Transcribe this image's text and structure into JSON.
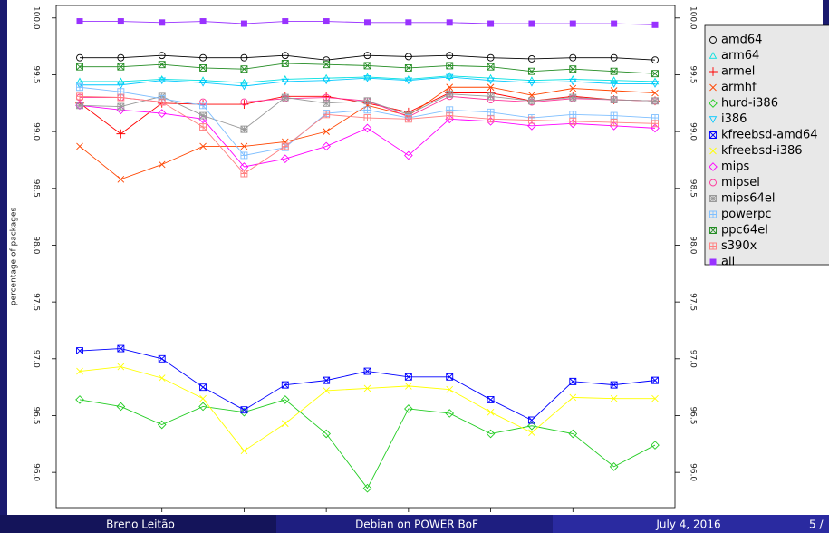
{
  "chart_data": {
    "type": "line",
    "y_label": "percentage of packages",
    "categories": [
      null,
      null,
      null,
      null,
      null,
      null,
      null,
      null,
      null,
      null,
      null,
      null,
      null,
      null,
      null
    ],
    "ylim": [
      95.69,
      100.11
    ],
    "yticks": [
      {
        "value": 96,
        "label": "96.0"
      },
      96.5,
      {
        "value": 97,
        "label": "97.0"
      },
      97.5,
      {
        "value": 98,
        "label": "98.0"
      },
      98.5,
      {
        "value": 99,
        "label": "99.0"
      },
      99.5,
      {
        "value": 100,
        "label": "100.0"
      }
    ],
    "legend": "right",
    "series": [
      {
        "name": "amd64",
        "color": "#000000",
        "marker": "circle",
        "values": [
          99.65,
          99.65,
          99.67,
          99.65,
          99.65,
          99.67,
          99.63,
          99.67,
          99.66,
          99.67,
          99.65,
          99.64,
          99.65,
          99.65,
          99.63
        ]
      },
      {
        "name": "arm64",
        "color": "#00e0e0",
        "marker": "triangle",
        "values": [
          99.44,
          99.44,
          99.46,
          99.45,
          99.43,
          99.46,
          99.47,
          99.48,
          99.46,
          99.49,
          99.47,
          99.45,
          99.46,
          99.45,
          99.44
        ]
      },
      {
        "name": "armel",
        "color": "#ff0000",
        "marker": "plus",
        "values": [
          99.25,
          98.98,
          99.25,
          99.24,
          99.24,
          99.31,
          99.31,
          99.25,
          99.17,
          99.34,
          99.34,
          99.27,
          99.31,
          99.28,
          99.27
        ]
      },
      {
        "name": "armhf",
        "color": "#ff4500",
        "marker": "x",
        "values": [
          98.87,
          98.58,
          98.71,
          98.87,
          98.87,
          98.91,
          99.0,
          99.23,
          99.14,
          99.39,
          99.39,
          99.32,
          99.38,
          99.36,
          99.34
        ]
      },
      {
        "name": "hurd-i386",
        "color": "#22cc22",
        "marker": "diamond",
        "values": [
          96.64,
          96.58,
          96.42,
          96.58,
          96.53,
          96.64,
          96.34,
          95.86,
          96.56,
          96.52,
          96.34,
          96.41,
          96.34,
          96.05,
          96.24
        ]
      },
      {
        "name": "i386",
        "color": "#00c8ff",
        "marker": "tri-down",
        "values": [
          99.41,
          99.41,
          99.45,
          99.43,
          99.4,
          99.44,
          99.45,
          99.47,
          99.45,
          99.48,
          99.45,
          99.43,
          99.44,
          99.42,
          99.42
        ]
      },
      {
        "name": "kfreebsd-amd64",
        "color": "#0000ff",
        "marker": "square-x",
        "values": [
          97.07,
          97.09,
          97.0,
          96.75,
          96.55,
          96.77,
          96.81,
          96.89,
          96.84,
          96.84,
          96.64,
          96.46,
          96.8,
          96.77,
          96.81
        ]
      },
      {
        "name": "kfreebsd-i386",
        "color": "#ffff00",
        "marker": "x",
        "values": [
          96.89,
          96.93,
          96.83,
          96.65,
          96.19,
          96.43,
          96.72,
          96.74,
          96.76,
          96.73,
          96.53,
          96.35,
          96.66,
          96.65,
          96.65
        ]
      },
      {
        "name": "mips",
        "color": "#ff00ff",
        "marker": "diamond",
        "values": [
          99.23,
          99.19,
          99.16,
          99.11,
          98.69,
          98.76,
          98.87,
          99.03,
          98.79,
          99.11,
          99.09,
          99.05,
          99.07,
          99.05,
          99.03
        ]
      },
      {
        "name": "mipsel",
        "color": "#ff3399",
        "marker": "circle",
        "values": [
          99.3,
          99.3,
          99.26,
          99.26,
          99.26,
          99.29,
          99.3,
          99.27,
          99.13,
          99.31,
          99.28,
          99.26,
          99.29,
          99.28,
          99.27
        ]
      },
      {
        "name": "mips64el",
        "color": "#999999",
        "marker": "star",
        "values": [
          99.23,
          99.22,
          99.31,
          99.14,
          99.02,
          99.3,
          99.25,
          99.27,
          99.15,
          99.33,
          99.31,
          99.27,
          99.3,
          99.28,
          99.27
        ]
      },
      {
        "name": "powerpc",
        "color": "#7fbfff",
        "marker": "square",
        "values": [
          99.39,
          99.35,
          99.29,
          99.23,
          98.79,
          98.86,
          99.16,
          99.19,
          99.12,
          99.19,
          99.17,
          99.12,
          99.15,
          99.14,
          99.12
        ]
      },
      {
        "name": "ppc64el",
        "color": "#228b22",
        "marker": "square-x",
        "values": [
          99.57,
          99.57,
          99.59,
          99.56,
          99.55,
          99.6,
          99.59,
          99.58,
          99.56,
          99.58,
          99.57,
          99.53,
          99.55,
          99.53,
          99.51
        ]
      },
      {
        "name": "s390x",
        "color": "#ff7f7f",
        "marker": "square",
        "values": [
          99.31,
          99.3,
          99.26,
          99.04,
          98.63,
          98.87,
          99.15,
          99.12,
          99.11,
          99.14,
          99.11,
          99.1,
          99.09,
          99.08,
          99.07
        ]
      },
      {
        "name": "all",
        "color": "#9932ff",
        "marker": "filled-square",
        "values": [
          99.97,
          99.97,
          99.96,
          99.97,
          99.95,
          99.97,
          99.97,
          99.96,
          99.96,
          99.96,
          99.95,
          99.95,
          99.95,
          99.95,
          99.94
        ]
      }
    ]
  },
  "footer": {
    "author": "Breno Leitão",
    "title": "Debian on POWER BoF",
    "date": "July 4, 2016",
    "page": "5 /"
  }
}
